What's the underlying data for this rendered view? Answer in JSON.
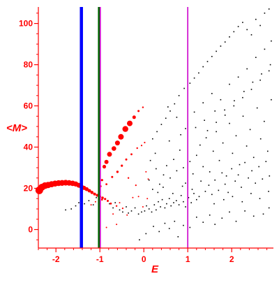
{
  "chart_data": {
    "type": "scatter",
    "title": "",
    "xlabel": "E",
    "ylabel": "<M>",
    "xlim": [
      -2.4,
      2.95
    ],
    "ylim": [
      -9,
      108
    ],
    "xticks": [
      -2,
      -1,
      0,
      1,
      2
    ],
    "yticks": [
      0,
      20,
      40,
      60,
      80,
      100
    ],
    "xtick_labels": [
      "-2",
      "-1",
      "0",
      "1",
      "2"
    ],
    "ytick_labels": [
      "0",
      "20",
      "40",
      "60",
      "80",
      "100"
    ],
    "grid": false,
    "legend": "none",
    "colors": {
      "axes": "#ff0000",
      "red_points": "#ff0000",
      "black_points": "#000000",
      "line_blue": "#0000ff",
      "line_green": "#006400",
      "line_magenta": "#cc00cc"
    },
    "vlines": [
      {
        "x": -1.42,
        "color": "#0000ff",
        "width": "thick"
      },
      {
        "x": -1.02,
        "color": "#006400",
        "width": "medium"
      },
      {
        "x": -0.99,
        "color": "#cc00cc",
        "width": "thin"
      },
      {
        "x": 1.0,
        "color": "#cc00cc",
        "width": "thin"
      }
    ],
    "series": [
      {
        "color": "#ff0000",
        "points": [
          [
            -2.38,
            19.0,
            5.5
          ],
          [
            -2.32,
            20.5,
            5
          ],
          [
            -2.25,
            21.3,
            4.8
          ],
          [
            -2.18,
            21.6,
            4.5
          ],
          [
            -2.1,
            22.0,
            4.4
          ],
          [
            -2.02,
            22.3,
            4.3
          ],
          [
            -1.94,
            22.5,
            4.2
          ],
          [
            -1.86,
            22.6,
            4.2
          ],
          [
            -1.78,
            22.7,
            4.1
          ],
          [
            -1.7,
            22.6,
            4.0
          ],
          [
            -1.62,
            22.4,
            3.9
          ],
          [
            -1.55,
            22.1,
            3.7
          ],
          [
            -1.48,
            21.5,
            3.5
          ],
          [
            -1.42,
            20.8,
            3.3
          ],
          [
            -1.36,
            20.2,
            3.0
          ],
          [
            -1.3,
            19.6,
            2.8
          ],
          [
            -1.24,
            18.8,
            2.5
          ],
          [
            -1.18,
            18.0,
            2.3
          ],
          [
            -1.12,
            17.2,
            2.1
          ],
          [
            -1.06,
            16.6,
            2.0
          ],
          [
            -1.0,
            16.0,
            1.9
          ],
          [
            -0.94,
            15.4,
            1.8
          ],
          [
            -0.88,
            14.8,
            1.6
          ],
          [
            -0.82,
            13.9,
            1.5
          ],
          [
            -0.75,
            12.6,
            1.4
          ],
          [
            -0.62,
            11.4,
            1.2
          ],
          [
            -0.48,
            10.3,
            1.1
          ],
          [
            -1.0,
            18.5,
            1.3
          ],
          [
            -0.98,
            21.0,
            1.3
          ],
          [
            -0.95,
            24.0,
            1.6
          ],
          [
            -0.9,
            30.5,
            2.6
          ],
          [
            -0.85,
            32.8,
            3.0
          ],
          [
            -0.78,
            36.5,
            3.5
          ],
          [
            -0.68,
            39.3,
            3.3
          ],
          [
            -0.6,
            42.0,
            3.5
          ],
          [
            -0.52,
            45.0,
            4.0
          ],
          [
            -0.42,
            48.8,
            4.2
          ],
          [
            -0.32,
            51.5,
            4.0
          ],
          [
            -0.22,
            54.5,
            2.5
          ],
          [
            -0.12,
            57.5,
            1.5
          ],
          [
            -0.02,
            59.3,
            1.2
          ],
          [
            -0.95,
            14.5,
            1.3
          ],
          [
            -0.85,
            22.0,
            1.4
          ],
          [
            -0.72,
            25.5,
            1.5
          ],
          [
            -0.6,
            28.0,
            1.7
          ],
          [
            -0.5,
            31.0,
            1.6
          ],
          [
            -0.4,
            34.0,
            1.5
          ],
          [
            -0.28,
            36.5,
            1.4
          ],
          [
            -0.15,
            39.5,
            1.2
          ],
          [
            -0.05,
            40.8,
            1.1
          ],
          [
            0.02,
            42.2,
            1.1
          ],
          [
            -0.35,
            25.0,
            1.2
          ],
          [
            -0.18,
            21.5,
            1.1
          ],
          [
            0.05,
            28.0,
            1.0
          ],
          [
            0.1,
            24.5,
            1.0
          ],
          [
            -0.12,
            16.0,
            1.0
          ],
          [
            -0.55,
            13.0,
            1.0
          ],
          [
            -0.38,
            7.0,
            1.0
          ],
          [
            -0.7,
            7.5,
            1.0
          ],
          [
            -1.2,
            12.0,
            1.0
          ],
          [
            -1.1,
            13.5,
            1.0
          ],
          [
            -0.85,
            1.0,
            1.0
          ],
          [
            -0.62,
            2.5,
            1.0
          ],
          [
            -0.25,
            15.5,
            1.0
          ],
          [
            0.08,
            15.0,
            1.0
          ],
          [
            -0.02,
            11.0,
            1.0
          ]
        ]
      },
      {
        "color": "#000000",
        "points": [
          [
            -1.78,
            9.5
          ],
          [
            -1.65,
            10.0
          ],
          [
            -1.55,
            11.5
          ],
          [
            -1.48,
            13.0
          ],
          [
            -1.35,
            12.5
          ],
          [
            -1.25,
            14.0
          ],
          [
            -1.15,
            12.0
          ],
          [
            -1.08,
            15.5
          ],
          [
            -0.78,
            12.5
          ],
          [
            -0.7,
            10.5
          ],
          [
            -0.65,
            13.0
          ],
          [
            -0.55,
            9.5
          ],
          [
            -0.48,
            8.5
          ],
          [
            -0.4,
            11.0
          ],
          [
            -0.35,
            8.0
          ],
          [
            -0.28,
            9.0
          ],
          [
            -0.2,
            10.5
          ],
          [
            -0.12,
            7.5
          ],
          [
            -0.05,
            8.5
          ],
          [
            0.02,
            9.0
          ],
          [
            0.06,
            11.5
          ],
          [
            0.12,
            10.0
          ],
          [
            0.18,
            8.5
          ],
          [
            0.24,
            12.0
          ],
          [
            0.28,
            9.5
          ],
          [
            0.33,
            13.5
          ],
          [
            0.38,
            11.0
          ],
          [
            0.42,
            14.5
          ],
          [
            0.48,
            10.5
          ],
          [
            0.52,
            12.5
          ],
          [
            0.58,
            15.0
          ],
          [
            0.62,
            11.5
          ],
          [
            0.68,
            13.0
          ],
          [
            0.74,
            14.0
          ],
          [
            0.8,
            12.0
          ],
          [
            0.85,
            16.5
          ],
          [
            0.9,
            13.5
          ],
          [
            0.95,
            11.0
          ],
          [
            1.02,
            15.5
          ],
          [
            1.08,
            13.0
          ],
          [
            1.14,
            17.5
          ],
          [
            1.2,
            14.5
          ],
          [
            1.26,
            16.0
          ],
          [
            -0.1,
            -5.0
          ],
          [
            0.05,
            -2.0
          ],
          [
            0.22,
            1.5
          ],
          [
            0.35,
            -1.0
          ],
          [
            0.48,
            3.0
          ],
          [
            0.58,
            0.5
          ],
          [
            0.7,
            4.0
          ],
          [
            0.78,
            -3.5
          ],
          [
            0.9,
            2.0
          ],
          [
            1.05,
            1.0
          ],
          [
            1.2,
            6.0
          ],
          [
            1.35,
            3.5
          ],
          [
            1.5,
            7.0
          ],
          [
            1.62,
            2.5
          ],
          [
            1.78,
            5.5
          ],
          [
            1.95,
            8.5
          ],
          [
            2.1,
            4.0
          ],
          [
            2.3,
            9.0
          ],
          [
            2.5,
            6.5
          ],
          [
            2.72,
            7.5
          ],
          [
            2.85,
            10.5
          ],
          [
            0.12,
            24.0
          ],
          [
            0.2,
            19.5
          ],
          [
            0.28,
            29.5
          ],
          [
            0.36,
            22.0
          ],
          [
            0.45,
            26.5
          ],
          [
            0.52,
            31.0
          ],
          [
            0.6,
            25.0
          ],
          [
            0.68,
            34.0
          ],
          [
            0.75,
            28.5
          ],
          [
            0.82,
            38.5
          ],
          [
            0.9,
            30.0
          ],
          [
            0.95,
            22.5
          ],
          [
            1.05,
            33.0
          ],
          [
            1.12,
            27.0
          ],
          [
            1.2,
            36.0
          ],
          [
            1.28,
            41.0
          ],
          [
            1.35,
            30.5
          ],
          [
            1.42,
            44.5
          ],
          [
            1.5,
            28.0
          ],
          [
            1.58,
            38.0
          ],
          [
            1.65,
            47.5
          ],
          [
            1.72,
            33.5
          ],
          [
            1.8,
            42.0
          ],
          [
            1.88,
            26.0
          ],
          [
            1.95,
            51.5
          ],
          [
            2.02,
            37.0
          ],
          [
            2.1,
            45.5
          ],
          [
            2.18,
            31.5
          ],
          [
            2.26,
            55.0
          ],
          [
            2.34,
            40.5
          ],
          [
            2.42,
            48.5
          ],
          [
            2.5,
            35.0
          ],
          [
            2.58,
            59.0
          ],
          [
            2.66,
            44.0
          ],
          [
            2.74,
            52.5
          ],
          [
            2.82,
            38.0
          ],
          [
            2.9,
            63.0
          ],
          [
            1.4,
            18.5
          ],
          [
            1.48,
            21.5
          ],
          [
            1.55,
            17.0
          ],
          [
            1.62,
            24.0
          ],
          [
            1.7,
            19.0
          ],
          [
            1.78,
            27.5
          ],
          [
            1.85,
            22.0
          ],
          [
            1.92,
            18.0
          ],
          [
            2.0,
            29.5
          ],
          [
            2.08,
            23.5
          ],
          [
            2.15,
            26.5
          ],
          [
            2.22,
            20.5
          ],
          [
            2.3,
            32.5
          ],
          [
            2.38,
            25.0
          ],
          [
            2.46,
            28.5
          ],
          [
            2.54,
            22.5
          ],
          [
            2.62,
            30.5
          ],
          [
            2.7,
            24.5
          ],
          [
            2.78,
            33.0
          ],
          [
            2.86,
            26.0
          ],
          [
            0.2,
            44.0
          ],
          [
            0.3,
            47.5
          ],
          [
            0.4,
            51.0
          ],
          [
            0.5,
            54.0
          ],
          [
            0.6,
            57.5
          ],
          [
            0.7,
            61.0
          ],
          [
            0.8,
            65.0
          ],
          [
            0.92,
            68.5
          ],
          [
            1.05,
            71.0
          ],
          [
            1.15,
            73.5
          ],
          [
            1.25,
            76.0
          ],
          [
            1.35,
            79.0
          ],
          [
            1.45,
            81.5
          ],
          [
            1.55,
            84.0
          ],
          [
            1.65,
            86.5
          ],
          [
            1.75,
            89.0
          ],
          [
            1.85,
            91.0
          ],
          [
            1.95,
            93.5
          ],
          [
            2.05,
            96.0
          ],
          [
            2.15,
            98.5
          ],
          [
            2.25,
            100.5
          ],
          [
            2.35,
            97.0
          ],
          [
            2.45,
            94.5
          ],
          [
            2.55,
            102.0
          ],
          [
            2.65,
            99.0
          ],
          [
            2.75,
            105.0
          ],
          [
            2.85,
            107.0
          ],
          [
            0.55,
            59.5
          ],
          [
            0.75,
            54.5
          ],
          [
            0.95,
            49.0
          ],
          [
            1.15,
            57.0
          ],
          [
            1.35,
            61.5
          ],
          [
            1.55,
            66.0
          ],
          [
            1.75,
            63.0
          ],
          [
            1.95,
            70.5
          ],
          [
            2.15,
            74.0
          ],
          [
            2.35,
            78.0
          ],
          [
            2.55,
            83.5
          ],
          [
            2.75,
            87.5
          ],
          [
            2.9,
            91.5
          ],
          [
            1.45,
            48.0
          ],
          [
            1.65,
            52.0
          ],
          [
            1.85,
            55.5
          ],
          [
            2.05,
            60.0
          ],
          [
            2.25,
            64.0
          ],
          [
            2.45,
            68.0
          ],
          [
            2.65,
            72.5
          ],
          [
            2.85,
            77.0
          ],
          [
            0.32,
            18.0
          ],
          [
            0.44,
            20.5
          ],
          [
            0.66,
            17.5
          ],
          [
            0.88,
            21.0
          ],
          [
            1.1,
            19.5
          ],
          [
            1.3,
            23.5
          ],
          [
            1.6,
            12.5
          ],
          [
            1.82,
            14.5
          ],
          [
            2.02,
            16.0
          ],
          [
            2.24,
            13.5
          ],
          [
            2.44,
            17.5
          ],
          [
            2.64,
            15.0
          ],
          [
            2.84,
            18.5
          ],
          [
            0.15,
            33.5
          ],
          [
            0.26,
            37.0
          ],
          [
            0.58,
            43.0
          ],
          [
            0.84,
            46.0
          ],
          [
            1.18,
            49.5
          ],
          [
            1.38,
            53.0
          ],
          [
            1.62,
            57.5
          ],
          [
            1.84,
            58.0
          ],
          [
            2.06,
            62.5
          ],
          [
            2.28,
            67.0
          ],
          [
            2.48,
            71.5
          ],
          [
            2.68,
            75.5
          ],
          [
            2.88,
            80.0
          ]
        ]
      }
    ]
  }
}
